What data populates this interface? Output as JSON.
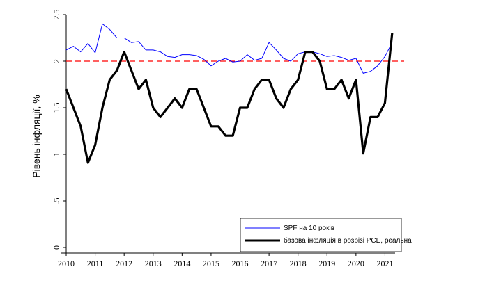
{
  "chart_data": {
    "type": "line",
    "ylabel": "Рівень інфляції, %",
    "xlabel": "",
    "xlim": [
      2010,
      2021.35
    ],
    "ylim": [
      0,
      2.5
    ],
    "x_ticks": [
      "2010",
      "2011",
      "2012",
      "2013",
      "2014",
      "2015",
      "2016",
      "2017",
      "2018",
      "2019",
      "2020",
      "2021"
    ],
    "y_ticks": [
      {
        "value": 0,
        "label": "0"
      },
      {
        "value": 0.5,
        "label": ".5"
      },
      {
        "value": 1,
        "label": "1"
      },
      {
        "value": 1.5,
        "label": "1.5"
      },
      {
        "value": 2,
        "label": "2"
      },
      {
        "value": 2.5,
        "label": "2.5"
      }
    ],
    "reference_line": {
      "value": 2,
      "color": "#ff0000",
      "style": "dashed"
    },
    "legend": {
      "placement": "bottom-right"
    },
    "series": [
      {
        "name": "SPF на 10 років",
        "color": "#0000ff",
        "points": [
          [
            2010.0,
            2.12
          ],
          [
            2010.25,
            2.16
          ],
          [
            2010.5,
            2.1
          ],
          [
            2010.75,
            2.19
          ],
          [
            2011.0,
            2.09
          ],
          [
            2011.25,
            2.4
          ],
          [
            2011.5,
            2.34
          ],
          [
            2011.75,
            2.25
          ],
          [
            2012.0,
            2.25
          ],
          [
            2012.25,
            2.2
          ],
          [
            2012.5,
            2.21
          ],
          [
            2012.75,
            2.12
          ],
          [
            2013.0,
            2.12
          ],
          [
            2013.25,
            2.1
          ],
          [
            2013.5,
            2.05
          ],
          [
            2013.75,
            2.04
          ],
          [
            2014.0,
            2.07
          ],
          [
            2014.25,
            2.07
          ],
          [
            2014.5,
            2.06
          ],
          [
            2014.75,
            2.02
          ],
          [
            2015.0,
            1.95
          ],
          [
            2015.25,
            2.0
          ],
          [
            2015.5,
            2.03
          ],
          [
            2015.75,
            1.99
          ],
          [
            2016.0,
            2.0
          ],
          [
            2016.25,
            2.07
          ],
          [
            2016.5,
            2.01
          ],
          [
            2016.75,
            2.03
          ],
          [
            2017.0,
            2.2
          ],
          [
            2017.25,
            2.12
          ],
          [
            2017.5,
            2.03
          ],
          [
            2017.75,
            2.0
          ],
          [
            2018.0,
            2.08
          ],
          [
            2018.25,
            2.1
          ],
          [
            2018.5,
            2.1
          ],
          [
            2018.75,
            2.08
          ],
          [
            2019.0,
            2.05
          ],
          [
            2019.25,
            2.06
          ],
          [
            2019.5,
            2.04
          ],
          [
            2019.75,
            2.01
          ],
          [
            2020.0,
            2.03
          ],
          [
            2020.25,
            1.87
          ],
          [
            2020.5,
            1.89
          ],
          [
            2020.75,
            1.95
          ],
          [
            2021.0,
            2.05
          ],
          [
            2021.25,
            2.2
          ]
        ]
      },
      {
        "name": "базова інфляція в розрізі PCE, реальна",
        "color": "#000000",
        "points": [
          [
            2010.0,
            1.7
          ],
          [
            2010.25,
            1.5
          ],
          [
            2010.5,
            1.3
          ],
          [
            2010.75,
            0.91
          ],
          [
            2011.0,
            1.1
          ],
          [
            2011.25,
            1.5
          ],
          [
            2011.5,
            1.8
          ],
          [
            2011.75,
            1.9
          ],
          [
            2012.0,
            2.1
          ],
          [
            2012.25,
            1.9
          ],
          [
            2012.5,
            1.7
          ],
          [
            2012.75,
            1.8
          ],
          [
            2013.0,
            1.5
          ],
          [
            2013.25,
            1.4
          ],
          [
            2013.5,
            1.5
          ],
          [
            2013.75,
            1.6
          ],
          [
            2014.0,
            1.5
          ],
          [
            2014.25,
            1.7
          ],
          [
            2014.5,
            1.7
          ],
          [
            2014.75,
            1.5
          ],
          [
            2015.0,
            1.3
          ],
          [
            2015.25,
            1.3
          ],
          [
            2015.5,
            1.2
          ],
          [
            2015.75,
            1.2
          ],
          [
            2016.0,
            1.5
          ],
          [
            2016.25,
            1.5
          ],
          [
            2016.5,
            1.7
          ],
          [
            2016.75,
            1.8
          ],
          [
            2017.0,
            1.8
          ],
          [
            2017.25,
            1.6
          ],
          [
            2017.5,
            1.5
          ],
          [
            2017.75,
            1.7
          ],
          [
            2018.0,
            1.8
          ],
          [
            2018.25,
            2.1
          ],
          [
            2018.5,
            2.1
          ],
          [
            2018.75,
            2.0
          ],
          [
            2019.0,
            1.7
          ],
          [
            2019.25,
            1.7
          ],
          [
            2019.5,
            1.8
          ],
          [
            2019.75,
            1.6
          ],
          [
            2020.0,
            1.8
          ],
          [
            2020.25,
            1.01
          ],
          [
            2020.5,
            1.4
          ],
          [
            2020.75,
            1.4
          ],
          [
            2021.0,
            1.55
          ],
          [
            2021.25,
            2.3
          ]
        ]
      }
    ]
  }
}
